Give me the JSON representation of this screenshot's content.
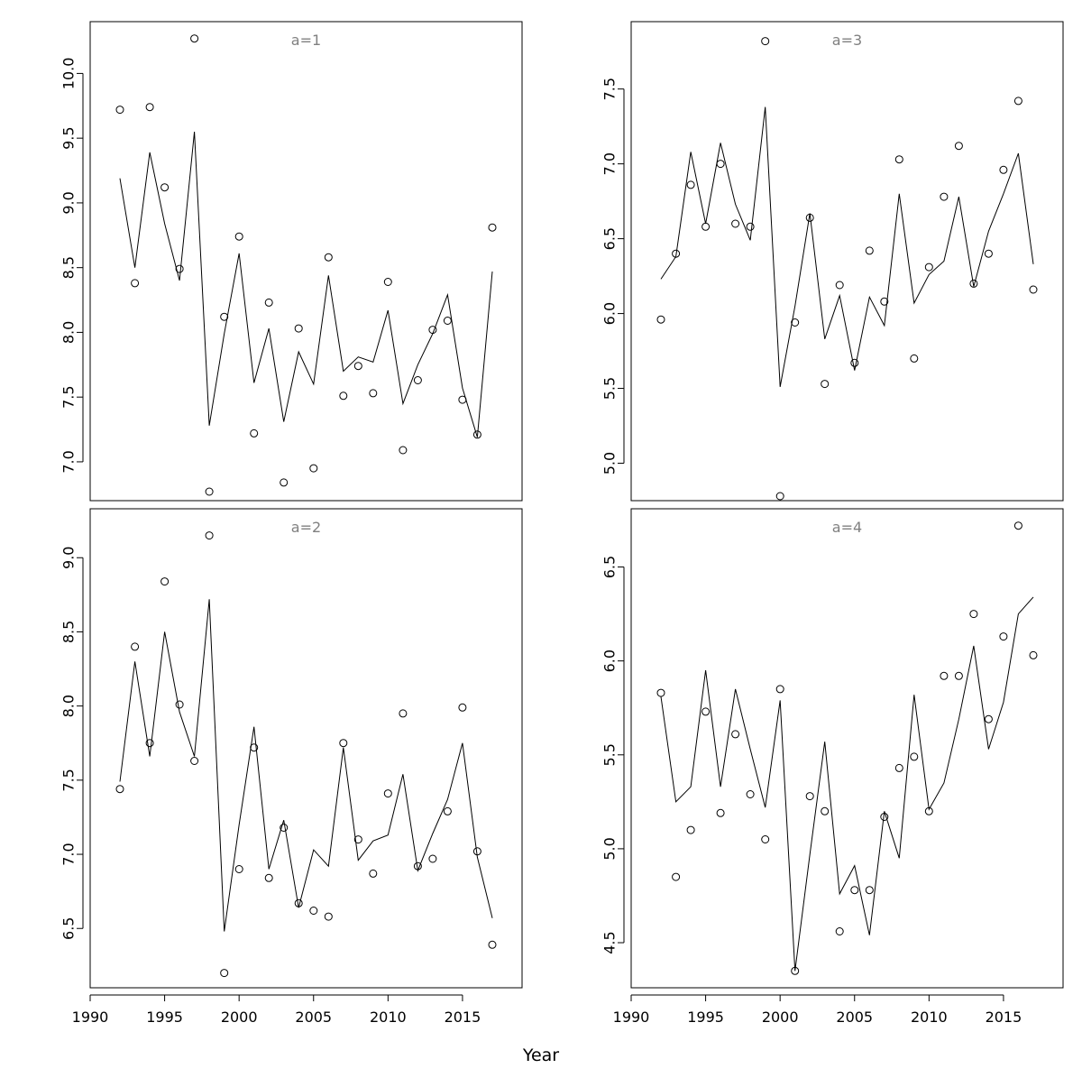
{
  "xlabel": "Year",
  "chart_data": [
    {
      "type": "scatter",
      "panel_label": "a=1",
      "xlabel": "",
      "ylabel": "",
      "xlim": [
        1990,
        2019
      ],
      "ylim": [
        6.7,
        10.4
      ],
      "x_ticks": [
        1990,
        1995,
        2000,
        2005,
        2010,
        2015
      ],
      "x_ticks_shown": false,
      "y_ticks": [
        7.0,
        7.5,
        8.0,
        8.5,
        9.0,
        9.5,
        10.0
      ],
      "grid": false,
      "series": [
        {
          "kind": "points",
          "x": [
            1992,
            1993,
            1994,
            1995,
            1996,
            1997,
            1998,
            1999,
            2000,
            2001,
            2002,
            2003,
            2004,
            2005,
            2006,
            2007,
            2008,
            2009,
            2010,
            2011,
            2012,
            2013,
            2014,
            2015,
            2016,
            2017
          ],
          "values": [
            9.72,
            8.38,
            9.74,
            9.12,
            8.49,
            10.27,
            6.77,
            8.12,
            8.74,
            7.22,
            8.23,
            6.84,
            8.03,
            6.95,
            8.58,
            7.51,
            7.74,
            7.53,
            8.39,
            7.09,
            7.63,
            8.02,
            8.09,
            7.48,
            7.21,
            8.81
          ]
        },
        {
          "kind": "line",
          "x": [
            1992,
            1993,
            1994,
            1995,
            1996,
            1997,
            1998,
            1999,
            2000,
            2001,
            2002,
            2003,
            2004,
            2005,
            2006,
            2007,
            2008,
            2009,
            2010,
            2011,
            2012,
            2013,
            2014,
            2015,
            2016,
            2017
          ],
          "values": [
            9.19,
            8.5,
            9.39,
            8.84,
            8.4,
            9.55,
            7.28,
            7.99,
            8.61,
            7.61,
            8.03,
            7.31,
            7.85,
            7.6,
            8.44,
            7.7,
            7.81,
            7.77,
            8.17,
            7.45,
            7.75,
            7.99,
            8.29,
            7.57,
            7.19,
            8.47
          ]
        }
      ]
    },
    {
      "type": "scatter",
      "panel_label": "a=3",
      "xlabel": "",
      "ylabel": "",
      "xlim": [
        1990,
        2019
      ],
      "ylim": [
        4.75,
        7.95
      ],
      "x_ticks": [
        1990,
        1995,
        2000,
        2005,
        2010,
        2015
      ],
      "x_ticks_shown": false,
      "y_ticks": [
        5.0,
        5.5,
        6.0,
        6.5,
        7.0,
        7.5
      ],
      "grid": false,
      "series": [
        {
          "kind": "points",
          "x": [
            1992,
            1993,
            1994,
            1995,
            1996,
            1997,
            1998,
            1999,
            2000,
            2001,
            2002,
            2003,
            2004,
            2005,
            2006,
            2007,
            2008,
            2009,
            2010,
            2011,
            2012,
            2013,
            2014,
            2015,
            2016,
            2017
          ],
          "values": [
            5.96,
            6.4,
            6.86,
            6.58,
            7.0,
            6.6,
            6.58,
            7.82,
            4.78,
            5.94,
            6.64,
            5.53,
            6.19,
            5.67,
            6.42,
            6.08,
            7.03,
            5.7,
            6.31,
            6.78,
            7.12,
            6.2,
            6.4,
            6.96,
            7.42,
            6.16
          ]
        },
        {
          "kind": "line",
          "x": [
            1992,
            1993,
            1994,
            1995,
            1996,
            1997,
            1998,
            1999,
            2000,
            2001,
            2002,
            2003,
            2004,
            2005,
            2006,
            2007,
            2008,
            2009,
            2010,
            2011,
            2012,
            2013,
            2014,
            2015,
            2016,
            2017
          ],
          "values": [
            6.23,
            6.38,
            7.08,
            6.6,
            7.14,
            6.73,
            6.49,
            7.38,
            5.51,
            6.05,
            6.67,
            5.83,
            6.12,
            5.62,
            6.11,
            5.92,
            6.8,
            6.07,
            6.26,
            6.35,
            6.78,
            6.18,
            6.55,
            6.8,
            7.07,
            6.33
          ]
        }
      ]
    },
    {
      "type": "scatter",
      "panel_label": "a=2",
      "xlabel": "Year",
      "ylabel": "",
      "xlim": [
        1990,
        2019
      ],
      "ylim": [
        6.1,
        9.33
      ],
      "x_ticks": [
        1990,
        1995,
        2000,
        2005,
        2010,
        2015
      ],
      "x_ticks_shown": true,
      "y_ticks": [
        6.5,
        7.0,
        7.5,
        8.0,
        8.5,
        9.0
      ],
      "grid": false,
      "series": [
        {
          "kind": "points",
          "x": [
            1992,
            1993,
            1994,
            1995,
            1996,
            1997,
            1998,
            1999,
            2000,
            2001,
            2002,
            2003,
            2004,
            2005,
            2006,
            2007,
            2008,
            2009,
            2010,
            2011,
            2012,
            2013,
            2014,
            2015,
            2016,
            2017
          ],
          "values": [
            7.44,
            8.4,
            7.75,
            8.84,
            8.01,
            7.63,
            9.15,
            6.2,
            6.9,
            7.72,
            6.84,
            7.18,
            6.67,
            6.62,
            6.58,
            7.75,
            7.1,
            6.87,
            7.41,
            7.95,
            6.92,
            6.97,
            7.29,
            7.99,
            7.02,
            6.39
          ]
        },
        {
          "kind": "line",
          "x": [
            1992,
            1993,
            1994,
            1995,
            1996,
            1997,
            1998,
            1999,
            2000,
            2001,
            2002,
            2003,
            2004,
            2005,
            2006,
            2007,
            2008,
            2009,
            2010,
            2011,
            2012,
            2013,
            2014,
            2015,
            2016,
            2017
          ],
          "values": [
            7.49,
            8.3,
            7.66,
            8.5,
            7.96,
            7.66,
            8.72,
            6.48,
            7.2,
            7.86,
            6.9,
            7.23,
            6.64,
            7.03,
            6.92,
            7.72,
            6.96,
            7.09,
            7.13,
            7.54,
            6.89,
            7.14,
            7.37,
            7.75,
            6.98,
            6.57
          ]
        }
      ]
    },
    {
      "type": "scatter",
      "panel_label": "a=4",
      "xlabel": "Year",
      "ylabel": "",
      "xlim": [
        1990,
        2019
      ],
      "ylim": [
        4.26,
        6.81
      ],
      "x_ticks": [
        1990,
        1995,
        2000,
        2005,
        2010,
        2015
      ],
      "x_ticks_shown": true,
      "y_ticks": [
        4.5,
        5.0,
        5.5,
        6.0,
        6.5
      ],
      "grid": false,
      "series": [
        {
          "kind": "points",
          "x": [
            1992,
            1993,
            1994,
            1995,
            1996,
            1997,
            1998,
            1999,
            2000,
            2001,
            2002,
            2003,
            2004,
            2005,
            2006,
            2007,
            2008,
            2009,
            2010,
            2011,
            2012,
            2013,
            2014,
            2015,
            2016,
            2017
          ],
          "values": [
            5.83,
            4.85,
            5.1,
            5.73,
            5.19,
            5.61,
            5.29,
            5.05,
            5.85,
            4.35,
            5.28,
            5.2,
            4.56,
            4.78,
            4.78,
            5.17,
            5.43,
            5.49,
            5.2,
            5.92,
            5.92,
            6.25,
            5.69,
            6.13,
            6.72,
            6.03
          ]
        },
        {
          "kind": "line",
          "x": [
            1992,
            1993,
            1994,
            1995,
            1996,
            1997,
            1998,
            1999,
            2000,
            2001,
            2002,
            2003,
            2004,
            2005,
            2006,
            2007,
            2008,
            2009,
            2010,
            2011,
            2012,
            2013,
            2014,
            2015,
            2016,
            2017
          ],
          "values": [
            5.81,
            5.25,
            5.33,
            5.95,
            5.33,
            5.85,
            5.53,
            5.22,
            5.79,
            4.35,
            4.97,
            5.57,
            4.76,
            4.91,
            4.54,
            5.2,
            4.95,
            5.82,
            5.21,
            5.35,
            5.69,
            6.08,
            5.53,
            5.78,
            6.25,
            6.34
          ]
        }
      ]
    }
  ]
}
